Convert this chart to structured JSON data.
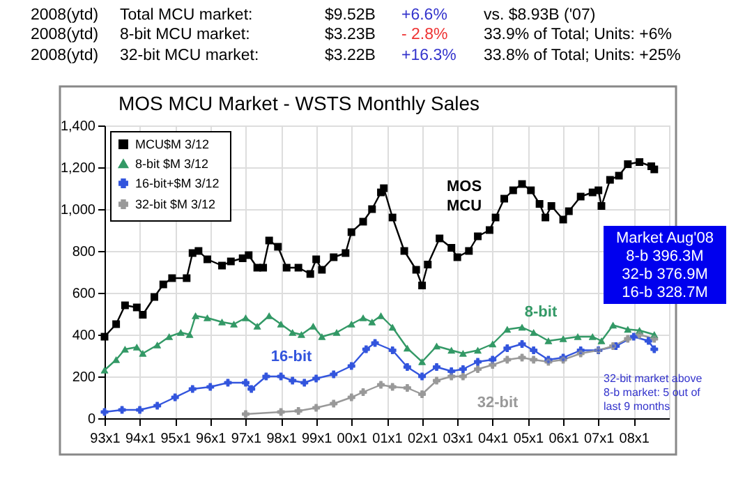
{
  "chart_data": {
    "type": "line",
    "title": "MOS MCU Market -  WSTS Monthly Sales",
    "xlim": [
      "1993-01",
      "2009-01"
    ],
    "xticks": [
      {
        "value": "1993-01",
        "label": "93x1"
      },
      {
        "value": "1994-01",
        "label": "94x1"
      },
      {
        "value": "1995-01",
        "label": "95x1"
      },
      {
        "value": "1996-01",
        "label": "96x1"
      },
      {
        "value": "1997-01",
        "label": "97x1"
      },
      {
        "value": "1998-01",
        "label": "98x1"
      },
      {
        "value": "1999-01",
        "label": "99x1"
      },
      {
        "value": "2000-01",
        "label": "00x1"
      },
      {
        "value": "2001-01",
        "label": "01x1"
      },
      {
        "value": "2002-01",
        "label": "02x1"
      },
      {
        "value": "2003-01",
        "label": "03x1"
      },
      {
        "value": "2004-01",
        "label": "04x1"
      },
      {
        "value": "2005-01",
        "label": "05x1"
      },
      {
        "value": "2006-01",
        "label": "06x1"
      },
      {
        "value": "2007-01",
        "label": "07x1"
      },
      {
        "value": "2008-01",
        "label": "08x1"
      }
    ],
    "ylim": [
      0,
      1400
    ],
    "yticks": [
      0,
      200,
      400,
      600,
      800,
      {
        "value": 1000,
        "label": "1,000"
      },
      {
        "value": 1200,
        "label": "1,200"
      },
      {
        "value": 1400,
        "label": "1,400"
      }
    ],
    "grid": true,
    "legend": "top left",
    "series": [
      {
        "name": "MCU$M 3/12",
        "color": "#000000",
        "marker": "square",
        "x": [
          "1993-01",
          "1993-05",
          "1993-08",
          "1993-12",
          "1994-02",
          "1994-06",
          "1994-09",
          "1994-12",
          "1995-05",
          "1995-07",
          "1995-09",
          "1995-12",
          "1996-05",
          "1996-08",
          "1996-12",
          "1997-02",
          "1997-05",
          "1997-07",
          "1997-09",
          "1997-12",
          "1998-03",
          "1998-07",
          "1998-11",
          "1999-01",
          "1999-03",
          "1999-07",
          "1999-11",
          "2000-01",
          "2000-05",
          "2000-08",
          "2000-11",
          "2000-12",
          "2001-03",
          "2001-07",
          "2001-11",
          "2002-01",
          "2002-03",
          "2002-07",
          "2002-11",
          "2003-01",
          "2003-05",
          "2003-08",
          "2003-12",
          "2004-02",
          "2004-05",
          "2004-08",
          "2004-11",
          "2005-02",
          "2005-05",
          "2005-07",
          "2005-09",
          "2006-01",
          "2006-03",
          "2006-07",
          "2006-11",
          "2007-01",
          "2007-02",
          "2007-05",
          "2007-08",
          "2007-11",
          "2008-03",
          "2008-07",
          "2008-08"
        ],
        "values": [
          390,
          450,
          540,
          530,
          495,
          580,
          640,
          670,
          670,
          790,
          800,
          760,
          730,
          750,
          765,
          780,
          720,
          720,
          850,
          820,
          720,
          720,
          690,
          760,
          710,
          770,
          790,
          890,
          940,
          1000,
          1080,
          1100,
          960,
          800,
          710,
          635,
          735,
          860,
          815,
          770,
          800,
          870,
          900,
          960,
          1050,
          1090,
          1120,
          1090,
          1025,
          960,
          1015,
          950,
          990,
          1060,
          1080,
          1090,
          1015,
          1140,
          1160,
          1215,
          1225,
          1205,
          1190
        ]
      },
      {
        "name": "8-bit $M  3/12",
        "color": "#339966",
        "marker": "triangle",
        "x": [
          "1993-01",
          "1993-05",
          "1993-08",
          "1993-12",
          "1994-02",
          "1994-07",
          "1994-11",
          "1995-03",
          "1995-06",
          "1995-08",
          "1995-12",
          "1996-05",
          "1996-09",
          "1997-01",
          "1997-05",
          "1997-09",
          "1998-01",
          "1998-05",
          "1998-08",
          "1998-12",
          "1999-03",
          "1999-08",
          "2000-01",
          "2000-05",
          "2000-08",
          "2000-11",
          "2001-03",
          "2001-08",
          "2002-01",
          "2002-06",
          "2002-11",
          "2003-03",
          "2003-08",
          "2004-01",
          "2004-06",
          "2004-11",
          "2005-03",
          "2005-08",
          "2006-01",
          "2006-06",
          "2006-11",
          "2007-02",
          "2007-06",
          "2007-11",
          "2008-03",
          "2008-08"
        ],
        "values": [
          230,
          280,
          330,
          340,
          310,
          350,
          390,
          410,
          400,
          490,
          480,
          460,
          450,
          480,
          440,
          490,
          450,
          410,
          400,
          440,
          390,
          410,
          450,
          480,
          460,
          490,
          435,
          335,
          270,
          345,
          325,
          310,
          325,
          355,
          425,
          435,
          410,
          370,
          380,
          390,
          390,
          370,
          445,
          425,
          420,
          400
        ]
      },
      {
        "name": "16-bit+$M  3/12",
        "color": "#3355dd",
        "marker": "cross",
        "x": [
          "1993-01",
          "1993-07",
          "1994-01",
          "1994-07",
          "1995-01",
          "1995-07",
          "1996-01",
          "1996-07",
          "1997-01",
          "1997-03",
          "1997-08",
          "1998-01",
          "1998-05",
          "1998-09",
          "1999-01",
          "1999-07",
          "2000-01",
          "2000-06",
          "2000-09",
          "2001-03",
          "2001-08",
          "2002-01",
          "2002-06",
          "2002-11",
          "2003-03",
          "2003-08",
          "2004-01",
          "2004-06",
          "2004-11",
          "2005-03",
          "2005-08",
          "2006-01",
          "2006-07",
          "2007-01",
          "2007-07",
          "2008-01",
          "2008-06",
          "2008-08"
        ],
        "values": [
          30,
          40,
          40,
          60,
          100,
          140,
          150,
          170,
          170,
          140,
          200,
          200,
          180,
          170,
          190,
          210,
          250,
          330,
          360,
          325,
          245,
          200,
          245,
          225,
          235,
          270,
          280,
          335,
          355,
          325,
          280,
          290,
          325,
          325,
          345,
          390,
          370,
          330
        ]
      },
      {
        "name": "32-bit $M  3/12",
        "color": "#999999",
        "marker": "cross",
        "x": [
          "1997-01",
          "1998-01",
          "1998-07",
          "1999-01",
          "1999-07",
          "2000-01",
          "2000-05",
          "2000-11",
          "2001-03",
          "2001-08",
          "2002-01",
          "2002-06",
          "2002-11",
          "2003-03",
          "2003-08",
          "2004-01",
          "2004-06",
          "2004-11",
          "2005-03",
          "2005-08",
          "2006-01",
          "2006-07",
          "2007-01",
          "2007-06",
          "2007-11",
          "2008-03",
          "2008-08"
        ],
        "values": [
          20,
          30,
          35,
          50,
          70,
          100,
          125,
          160,
          150,
          145,
          115,
          180,
          200,
          200,
          235,
          255,
          280,
          290,
          280,
          270,
          280,
          310,
          325,
          345,
          380,
          400,
          380
        ]
      }
    ],
    "annotations": [
      "2008(ytd)",
      "Total MCU market:",
      "$9.52B",
      "+6.6%",
      "vs. $8.93B ('07)",
      "2008(ytd)",
      "8-bit MCU market:",
      "$3.23B",
      "- 2.8%",
      "33.9% of Total;  Units: +6%",
      "2008(ytd)",
      "32-bit MCU market:",
      "$3.22B",
      "+16.3%",
      "33.8% of Total;  Units: +25%",
      "MOS\nMCU",
      "8-bit",
      "16-bit",
      "32-bit",
      "Market Aug'08\n8-b  396.3M\n32-b  376.9M\n16-b  328.7M",
      "32-bit market above\n8-b market: 5 out of\nlast 9 months"
    ]
  }
}
